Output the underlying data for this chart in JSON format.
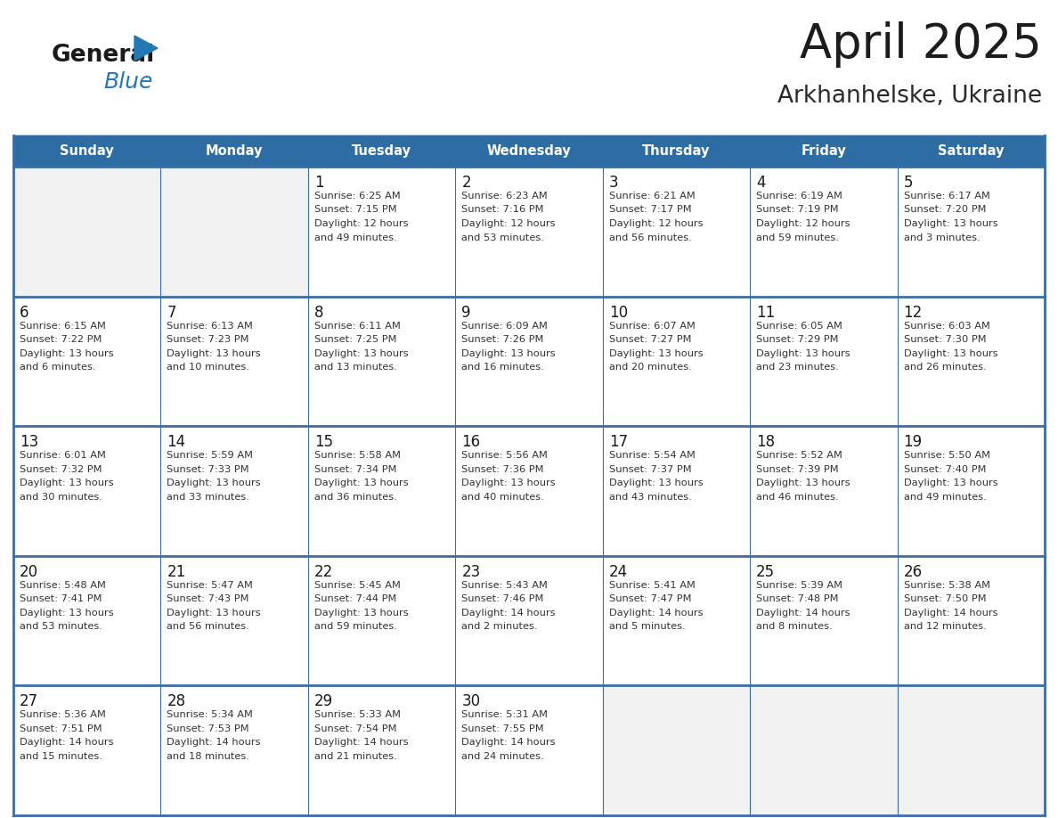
{
  "title": "April 2025",
  "subtitle": "Arkhanhelske, Ukraine",
  "header_bg_color": "#2E6DA4",
  "header_text_color": "#FFFFFF",
  "day_names": [
    "Sunday",
    "Monday",
    "Tuesday",
    "Wednesday",
    "Thursday",
    "Friday",
    "Saturday"
  ],
  "cell_bg_color": "#FFFFFF",
  "cell_bg_empty": "#F2F2F2",
  "grid_color": "#2E6DA4",
  "grid_line_color": "#3A6EA5",
  "day_num_color": "#1a1a1a",
  "info_text_color": "#333333",
  "logo_general_color": "#1a1a1a",
  "logo_blue_color": "#2378B5",
  "weeks": [
    [
      {
        "day": "",
        "info": ""
      },
      {
        "day": "",
        "info": ""
      },
      {
        "day": "1",
        "info": "Sunrise: 6:25 AM\nSunset: 7:15 PM\nDaylight: 12 hours\nand 49 minutes."
      },
      {
        "day": "2",
        "info": "Sunrise: 6:23 AM\nSunset: 7:16 PM\nDaylight: 12 hours\nand 53 minutes."
      },
      {
        "day": "3",
        "info": "Sunrise: 6:21 AM\nSunset: 7:17 PM\nDaylight: 12 hours\nand 56 minutes."
      },
      {
        "day": "4",
        "info": "Sunrise: 6:19 AM\nSunset: 7:19 PM\nDaylight: 12 hours\nand 59 minutes."
      },
      {
        "day": "5",
        "info": "Sunrise: 6:17 AM\nSunset: 7:20 PM\nDaylight: 13 hours\nand 3 minutes."
      }
    ],
    [
      {
        "day": "6",
        "info": "Sunrise: 6:15 AM\nSunset: 7:22 PM\nDaylight: 13 hours\nand 6 minutes."
      },
      {
        "day": "7",
        "info": "Sunrise: 6:13 AM\nSunset: 7:23 PM\nDaylight: 13 hours\nand 10 minutes."
      },
      {
        "day": "8",
        "info": "Sunrise: 6:11 AM\nSunset: 7:25 PM\nDaylight: 13 hours\nand 13 minutes."
      },
      {
        "day": "9",
        "info": "Sunrise: 6:09 AM\nSunset: 7:26 PM\nDaylight: 13 hours\nand 16 minutes."
      },
      {
        "day": "10",
        "info": "Sunrise: 6:07 AM\nSunset: 7:27 PM\nDaylight: 13 hours\nand 20 minutes."
      },
      {
        "day": "11",
        "info": "Sunrise: 6:05 AM\nSunset: 7:29 PM\nDaylight: 13 hours\nand 23 minutes."
      },
      {
        "day": "12",
        "info": "Sunrise: 6:03 AM\nSunset: 7:30 PM\nDaylight: 13 hours\nand 26 minutes."
      }
    ],
    [
      {
        "day": "13",
        "info": "Sunrise: 6:01 AM\nSunset: 7:32 PM\nDaylight: 13 hours\nand 30 minutes."
      },
      {
        "day": "14",
        "info": "Sunrise: 5:59 AM\nSunset: 7:33 PM\nDaylight: 13 hours\nand 33 minutes."
      },
      {
        "day": "15",
        "info": "Sunrise: 5:58 AM\nSunset: 7:34 PM\nDaylight: 13 hours\nand 36 minutes."
      },
      {
        "day": "16",
        "info": "Sunrise: 5:56 AM\nSunset: 7:36 PM\nDaylight: 13 hours\nand 40 minutes."
      },
      {
        "day": "17",
        "info": "Sunrise: 5:54 AM\nSunset: 7:37 PM\nDaylight: 13 hours\nand 43 minutes."
      },
      {
        "day": "18",
        "info": "Sunrise: 5:52 AM\nSunset: 7:39 PM\nDaylight: 13 hours\nand 46 minutes."
      },
      {
        "day": "19",
        "info": "Sunrise: 5:50 AM\nSunset: 7:40 PM\nDaylight: 13 hours\nand 49 minutes."
      }
    ],
    [
      {
        "day": "20",
        "info": "Sunrise: 5:48 AM\nSunset: 7:41 PM\nDaylight: 13 hours\nand 53 minutes."
      },
      {
        "day": "21",
        "info": "Sunrise: 5:47 AM\nSunset: 7:43 PM\nDaylight: 13 hours\nand 56 minutes."
      },
      {
        "day": "22",
        "info": "Sunrise: 5:45 AM\nSunset: 7:44 PM\nDaylight: 13 hours\nand 59 minutes."
      },
      {
        "day": "23",
        "info": "Sunrise: 5:43 AM\nSunset: 7:46 PM\nDaylight: 14 hours\nand 2 minutes."
      },
      {
        "day": "24",
        "info": "Sunrise: 5:41 AM\nSunset: 7:47 PM\nDaylight: 14 hours\nand 5 minutes."
      },
      {
        "day": "25",
        "info": "Sunrise: 5:39 AM\nSunset: 7:48 PM\nDaylight: 14 hours\nand 8 minutes."
      },
      {
        "day": "26",
        "info": "Sunrise: 5:38 AM\nSunset: 7:50 PM\nDaylight: 14 hours\nand 12 minutes."
      }
    ],
    [
      {
        "day": "27",
        "info": "Sunrise: 5:36 AM\nSunset: 7:51 PM\nDaylight: 14 hours\nand 15 minutes."
      },
      {
        "day": "28",
        "info": "Sunrise: 5:34 AM\nSunset: 7:53 PM\nDaylight: 14 hours\nand 18 minutes."
      },
      {
        "day": "29",
        "info": "Sunrise: 5:33 AM\nSunset: 7:54 PM\nDaylight: 14 hours\nand 21 minutes."
      },
      {
        "day": "30",
        "info": "Sunrise: 5:31 AM\nSunset: 7:55 PM\nDaylight: 14 hours\nand 24 minutes."
      },
      {
        "day": "",
        "info": ""
      },
      {
        "day": "",
        "info": ""
      },
      {
        "day": "",
        "info": ""
      }
    ]
  ],
  "figsize": [
    11.88,
    9.18
  ],
  "dpi": 100
}
